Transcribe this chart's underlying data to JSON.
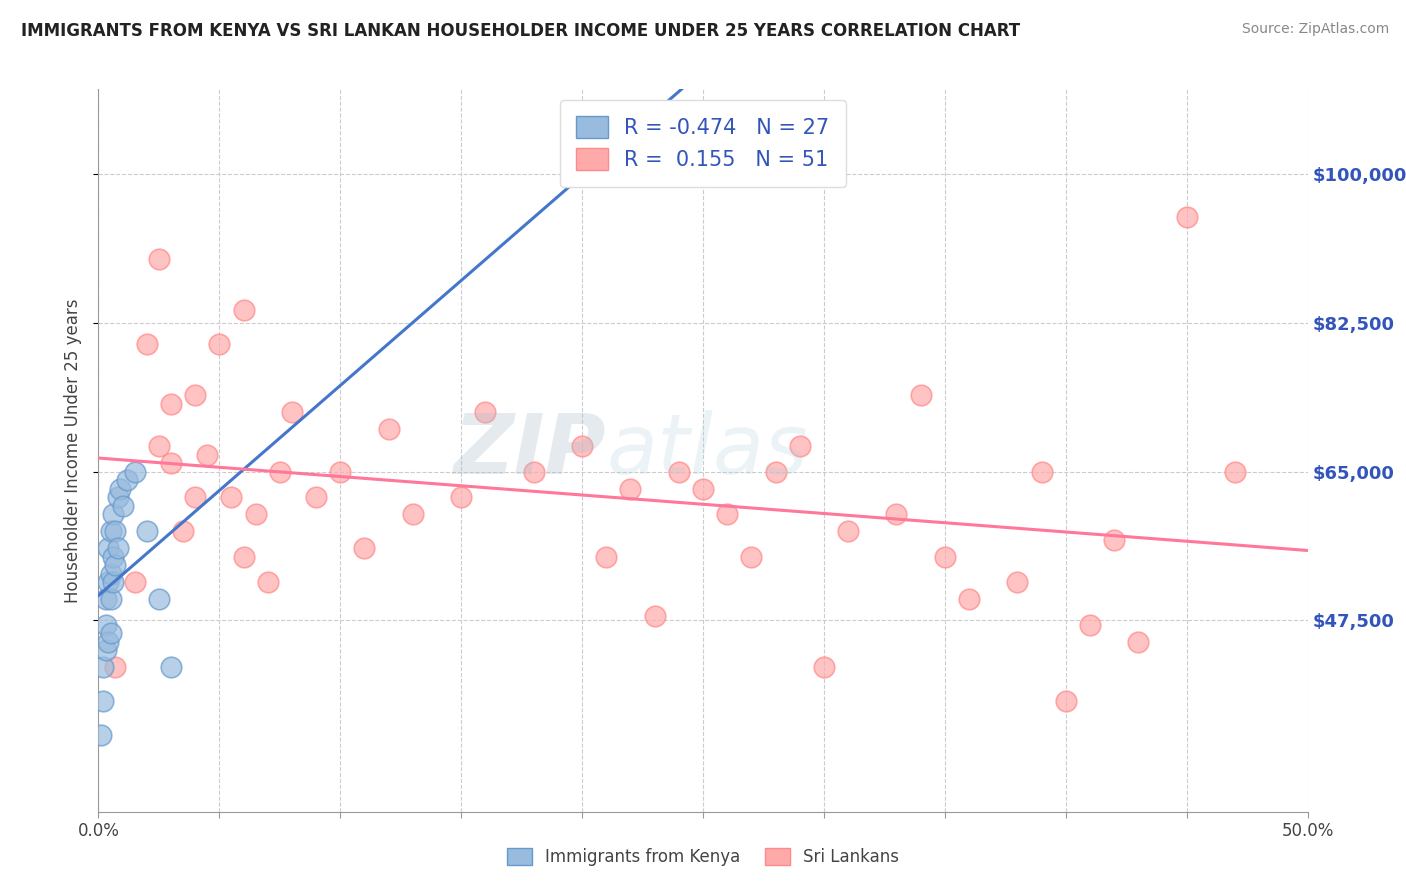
{
  "title": "IMMIGRANTS FROM KENYA VS SRI LANKAN HOUSEHOLDER INCOME UNDER 25 YEARS CORRELATION CHART",
  "source": "Source: ZipAtlas.com",
  "ylabel": "Householder Income Under 25 years",
  "xlim": [
    0.0,
    0.5
  ],
  "ylim": [
    25000,
    110000
  ],
  "ytick_values": [
    47500,
    65000,
    82500,
    100000
  ],
  "ytick_labels": [
    "$47,500",
    "$65,000",
    "$82,500",
    "$100,000"
  ],
  "kenya_R": -0.474,
  "kenya_N": 27,
  "srilanka_R": 0.155,
  "srilanka_N": 51,
  "kenya_color": "#99BBDD",
  "kenya_edge": "#6699CC",
  "srilanka_color": "#FFAAAA",
  "srilanka_edge": "#FF8888",
  "trend_kenya_color": "#4477CC",
  "trend_srilanka_color": "#FF7799",
  "legend_label_kenya": "Immigrants from Kenya",
  "legend_label_srilanka": "Sri Lankans",
  "background_color": "#FFFFFF",
  "kenya_x": [
    0.001,
    0.002,
    0.002,
    0.003,
    0.003,
    0.003,
    0.004,
    0.004,
    0.004,
    0.005,
    0.005,
    0.005,
    0.005,
    0.006,
    0.006,
    0.006,
    0.007,
    0.007,
    0.008,
    0.008,
    0.009,
    0.01,
    0.012,
    0.015,
    0.02,
    0.025,
    0.03
  ],
  "kenya_y": [
    34000,
    38000,
    42000,
    44000,
    47000,
    50000,
    45000,
    52000,
    56000,
    46000,
    50000,
    53000,
    58000,
    52000,
    55000,
    60000,
    54000,
    58000,
    56000,
    62000,
    63000,
    61000,
    64000,
    65000,
    58000,
    50000,
    42000
  ],
  "srilanka_x": [
    0.007,
    0.015,
    0.02,
    0.025,
    0.025,
    0.03,
    0.03,
    0.035,
    0.04,
    0.04,
    0.045,
    0.05,
    0.055,
    0.06,
    0.06,
    0.065,
    0.07,
    0.075,
    0.08,
    0.09,
    0.1,
    0.11,
    0.12,
    0.13,
    0.15,
    0.16,
    0.18,
    0.2,
    0.21,
    0.22,
    0.23,
    0.24,
    0.25,
    0.26,
    0.27,
    0.28,
    0.29,
    0.3,
    0.31,
    0.33,
    0.34,
    0.35,
    0.36,
    0.38,
    0.39,
    0.4,
    0.41,
    0.42,
    0.43,
    0.45,
    0.47
  ],
  "srilanka_y": [
    42000,
    52000,
    80000,
    90000,
    68000,
    66000,
    73000,
    58000,
    62000,
    74000,
    67000,
    80000,
    62000,
    84000,
    55000,
    60000,
    52000,
    65000,
    72000,
    62000,
    65000,
    56000,
    70000,
    60000,
    62000,
    72000,
    65000,
    68000,
    55000,
    63000,
    48000,
    65000,
    63000,
    60000,
    55000,
    65000,
    68000,
    42000,
    58000,
    60000,
    74000,
    55000,
    50000,
    52000,
    65000,
    38000,
    47000,
    57000,
    45000,
    95000,
    65000
  ]
}
